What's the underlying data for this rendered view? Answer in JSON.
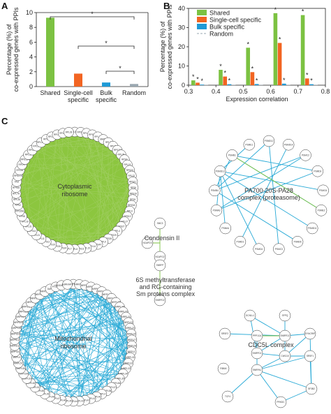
{
  "panel_labels": {
    "a": "A",
    "b": "B",
    "c": "C"
  },
  "colors": {
    "shared": "#7cc242",
    "single": "#f26522",
    "bulk": "#1f9ad6",
    "random": "#9aa7b0",
    "edge_blue": "#27a9d6",
    "ribo_fill": "#8cc63f"
  },
  "chart_data": [
    {
      "type": "bar",
      "categories": [
        "Shared",
        "Single-cell specific",
        "Bulk specific",
        "Random"
      ],
      "category_lines": [
        [
          "Shared"
        ],
        [
          "Single-cell",
          "specific"
        ],
        [
          "Bulk",
          "specific"
        ],
        [
          "Random"
        ]
      ],
      "values": [
        9.3,
        1.75,
        0.55,
        0.35
      ],
      "colors": [
        "#7cc242",
        "#f26522",
        "#1f9ad6",
        "#9aa7b0"
      ],
      "ylabel_lines": [
        "Percentage (%) of",
        "co-expressed genes with PPIs"
      ],
      "ylim": [
        0,
        10
      ],
      "yticks": [
        0,
        2,
        4,
        6,
        8,
        10
      ],
      "significance": [
        {
          "from": 0,
          "to": 3,
          "label": "*"
        },
        {
          "from": 1,
          "to": 3,
          "label": "*"
        },
        {
          "from": 2,
          "to": 3,
          "label": "*"
        }
      ]
    },
    {
      "type": "bar",
      "x": [
        0.3,
        0.4,
        0.5,
        0.6,
        0.7
      ],
      "xlim": [
        0.3,
        0.8
      ],
      "xticks": [
        "0.3",
        "0.4",
        "0.5",
        "0.6",
        "0.7",
        "0.8"
      ],
      "xlabel": "Expression correlation",
      "ylabel_lines": [
        "Percentage (%) of",
        "co-expressed genes with PPIs"
      ],
      "ylim": [
        0,
        40
      ],
      "yticks": [
        0,
        10,
        20,
        30,
        40
      ],
      "series": [
        {
          "name": "Shared",
          "color": "#7cc242",
          "values": [
            2.5,
            8.0,
            19.5,
            37.5,
            36.5
          ]
        },
        {
          "name": "Single-cell specific",
          "color": "#f26522",
          "values": [
            1.3,
            4.5,
            6.8,
            22.0,
            3.5
          ]
        },
        {
          "name": "Bulk specific",
          "color": "#1f9ad6",
          "values": [
            0.3,
            0.5,
            0.6,
            0.8,
            0.5
          ]
        },
        {
          "name": "Random",
          "color": "#9aa7b0",
          "values": [
            0.2,
            0.2,
            0.2,
            0.2,
            0.2
          ]
        }
      ],
      "stars": "*"
    }
  ],
  "networks": {
    "cytoplasmic": {
      "label_lines": [
        "Cytoplasmic",
        "ribosome"
      ],
      "nodes": [
        "RPL10A",
        "RPS25",
        "RPL24",
        "RPS23",
        "RPL23",
        "UBA52",
        "RPL3",
        "RPL5",
        "RPS10",
        "RPL29",
        "RPS9",
        "RPL13",
        "RPS20",
        "RPL22",
        "RPS21",
        "RPS6",
        "RPS18",
        "RPS5",
        "RPS3A",
        "RPL6",
        "RPS13",
        "RPL27",
        "RPS27",
        "RPL4",
        "RPS29",
        "RPS28",
        "RPL9",
        "RPS4X",
        "RPL14",
        "RPL15",
        "RPS11",
        "RPL8",
        "RPL7",
        "RPS24",
        "RPS26",
        "RPS19",
        "RPS12",
        "RPL11",
        "RPL21",
        "RPS14",
        "RPL31",
        "RPL18",
        "RPS8",
        "RPL35A",
        "RPS2",
        "RPL38",
        "RPL7A",
        "RPS16",
        "FAU",
        "RPS27A",
        "RPL36",
        "RPLP1",
        "RPS15A",
        "RPL32",
        "RPL34",
        "RPL19",
        "RPL37A",
        "RPS3",
        "RPL30",
        "RPL26",
        "RPL35",
        "RPL39"
      ]
    },
    "mitochondrial": {
      "label_lines": [
        "Mitochondrial",
        "ribosome"
      ],
      "nodes": [
        "MRPL10",
        "MRPL11",
        "MRPL12",
        "MRPL13",
        "MRPL14",
        "MRPL15",
        "MRPL16",
        "MRPL17",
        "MRPL18",
        "MRPL19",
        "MRPL20",
        "MRPL21",
        "MRPL22",
        "MRPL23",
        "MRPL24",
        "MRPL27",
        "MRPL28",
        "MRPL3",
        "MRPL30",
        "MRPL32",
        "MRPL33",
        "MRPL34",
        "MRPL35",
        "MRPL36",
        "MRPL37",
        "MRPL38",
        "MRPL4",
        "MRPL40",
        "MRPL41",
        "MRPL42",
        "MRPL43",
        "MRPL44",
        "MRPL45",
        "MRPL46",
        "MRPL47",
        "MRPL48",
        "MRPL49",
        "MRPL50",
        "MRPL51",
        "MRPL52",
        "MRPL53",
        "MRPL54",
        "MRPL55",
        "MRPL57",
        "MRPL9",
        "MRPS10",
        "MRPS11",
        "MRPS12",
        "MRPS14",
        "MRPS15",
        "MRPS16",
        "MRPS17",
        "MRPS18A",
        "MRPS18C",
        "MRPS2",
        "MRPS21",
        "MRPS22",
        "MRPS23",
        "DAP3",
        "PTCD3",
        "GADD45GIP1",
        "AURKAIP1"
      ]
    },
    "proteasome": {
      "label_lines": [
        "PA700-20S-PA28",
        "complex (proteasome)"
      ],
      "nodes": [
        "PSMD12",
        "PSMD14",
        "PSMC2",
        "PSMD3",
        "PSMC6",
        "PSME2",
        "PSMD11",
        "PSMD6",
        "PSMC3",
        "PSMD4",
        "PSMD1",
        "PSMA4",
        "PSMA3",
        "PSMB4",
        "PSMD13",
        "PSMB1",
        "PSME1"
      ]
    },
    "condensin": {
      "label_lines": [
        "Condensin II"
      ],
      "nodes": [
        "SMC3",
        "NCAPD3",
        "NCAPG2"
      ]
    },
    "methyl": {
      "label_lines": [
        "6S methyltransferase",
        "and RG-containing",
        "Sm proteins complex"
      ],
      "nodes": [
        "SNRPF",
        "SNRPD2"
      ]
    },
    "cdc5l": {
      "label_lines": [
        "CDC5L complex"
      ],
      "nodes": [
        "GCN1L1",
        "SFPQ",
        "SRSF2",
        "PPP1CA",
        "SNRPD2",
        "SYNCRIP",
        "SNRPD1",
        "CWC15",
        "SRSF1",
        "RBMX",
        "SNRPA1",
        "TCF4",
        "SF3B2",
        "PRKDC"
      ]
    }
  }
}
